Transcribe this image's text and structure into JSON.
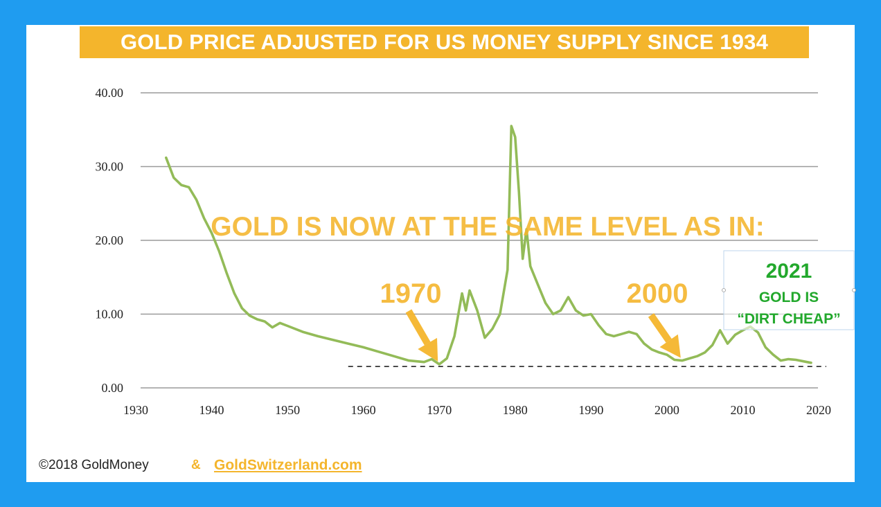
{
  "chart_data": {
    "type": "line",
    "title": "GOLD PRICE ADJUSTED FOR US MONEY SUPPLY SINCE 1934",
    "xlabel": "",
    "ylabel": "",
    "xlim": [
      1930,
      2020
    ],
    "ylim": [
      0,
      40
    ],
    "grid": true,
    "x_ticks": [
      "1930",
      "1940",
      "1950",
      "1960",
      "1970",
      "1980",
      "1990",
      "2000",
      "2010",
      "2020"
    ],
    "y_ticks": [
      "0.00",
      "10.00",
      "20.00",
      "30.00",
      "40.00"
    ],
    "series": [
      {
        "color": "#93bb58",
        "points": [
          [
            1934,
            31.2
          ],
          [
            1935,
            28.5
          ],
          [
            1936,
            27.5
          ],
          [
            1937,
            27.2
          ],
          [
            1938,
            25.5
          ],
          [
            1939,
            23.0
          ],
          [
            1940,
            21.0
          ],
          [
            1941,
            18.5
          ],
          [
            1942,
            15.5
          ],
          [
            1943,
            12.8
          ],
          [
            1944,
            10.8
          ],
          [
            1945,
            9.8
          ],
          [
            1946,
            9.3
          ],
          [
            1947,
            9.0
          ],
          [
            1948,
            8.2
          ],
          [
            1949,
            8.8
          ],
          [
            1950,
            8.4
          ],
          [
            1952,
            7.6
          ],
          [
            1954,
            7.0
          ],
          [
            1956,
            6.5
          ],
          [
            1958,
            6.0
          ],
          [
            1960,
            5.5
          ],
          [
            1962,
            4.9
          ],
          [
            1964,
            4.3
          ],
          [
            1966,
            3.7
          ],
          [
            1968,
            3.5
          ],
          [
            1969,
            3.9
          ],
          [
            1970,
            3.2
          ],
          [
            1971,
            4.0
          ],
          [
            1972,
            7.0
          ],
          [
            1973,
            12.8
          ],
          [
            1973.5,
            10.5
          ],
          [
            1974,
            13.2
          ],
          [
            1975,
            10.5
          ],
          [
            1976,
            6.8
          ],
          [
            1977,
            8.0
          ],
          [
            1978,
            10.0
          ],
          [
            1979,
            16.0
          ],
          [
            1979.5,
            35.5
          ],
          [
            1980,
            34.0
          ],
          [
            1980.5,
            26.5
          ],
          [
            1981,
            17.5
          ],
          [
            1981.5,
            21.5
          ],
          [
            1982,
            16.5
          ],
          [
            1983,
            14.0
          ],
          [
            1984,
            11.5
          ],
          [
            1985,
            10.0
          ],
          [
            1986,
            10.5
          ],
          [
            1987,
            12.3
          ],
          [
            1988,
            10.5
          ],
          [
            1989,
            9.8
          ],
          [
            1990,
            10.0
          ],
          [
            1991,
            8.5
          ],
          [
            1992,
            7.3
          ],
          [
            1993,
            7.0
          ],
          [
            1994,
            7.3
          ],
          [
            1995,
            7.6
          ],
          [
            1996,
            7.3
          ],
          [
            1997,
            6.0
          ],
          [
            1998,
            5.2
          ],
          [
            1999,
            4.8
          ],
          [
            2000,
            4.5
          ],
          [
            2001,
            3.8
          ],
          [
            2002,
            3.7
          ],
          [
            2003,
            4.0
          ],
          [
            2004,
            4.3
          ],
          [
            2005,
            4.8
          ],
          [
            2006,
            5.8
          ],
          [
            2007,
            7.8
          ],
          [
            2008,
            6.0
          ],
          [
            2009,
            7.2
          ],
          [
            2010,
            7.8
          ],
          [
            2011,
            8.3
          ],
          [
            2012,
            7.5
          ],
          [
            2013,
            5.5
          ],
          [
            2014,
            4.5
          ],
          [
            2015,
            3.7
          ],
          [
            2016,
            3.9
          ],
          [
            2017,
            3.8
          ],
          [
            2018,
            3.6
          ],
          [
            2019,
            3.4
          ]
        ]
      }
    ],
    "reference_line": {
      "y": 2.9,
      "x_from": 1958,
      "x_to": 2021,
      "style": "dashed"
    },
    "annotations": [
      {
        "text": "GOLD IS NOW AT THE SAME LEVEL AS IN:",
        "color": "#f4b52c"
      },
      {
        "text": "1970",
        "color": "#f4b52c",
        "arrow_to": [
          1970,
          3.2
        ]
      },
      {
        "text": "2000",
        "color": "#f4b52c",
        "arrow_to": [
          2002,
          3.7
        ]
      },
      {
        "text": "2021",
        "color": "#22a82c"
      },
      {
        "text": "GOLD IS",
        "color": "#22a82c"
      },
      {
        "text": "“DIRT CHEAP”",
        "color": "#22a82c"
      }
    ]
  },
  "footer": {
    "copyright": "©2018 GoldMoney",
    "ampersand": "&",
    "link": "GoldSwitzerland.com"
  },
  "colors": {
    "frame": "#1f9cf0",
    "accent": "#f4b52c",
    "line": "#93bb58",
    "green_text": "#22a82c"
  }
}
